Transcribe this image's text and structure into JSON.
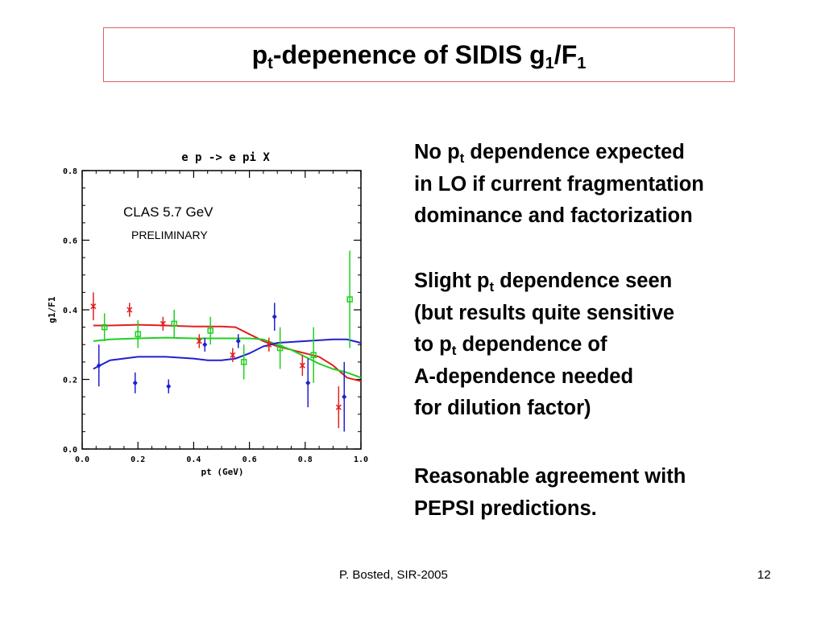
{
  "slide": {
    "title": {
      "main": "p",
      "sub1": "t",
      "mid": "-depenence of SIDIS g",
      "sub2": "1",
      "end": "/F",
      "sub3": "1"
    },
    "block1": {
      "l1": {
        "a": "No p",
        "sub": "t",
        "b": " dependence expected"
      },
      "l2": "in LO if current fragmentation",
      "l3": "dominance and factorization"
    },
    "block2": {
      "l1": {
        "a": "Slight p",
        "sub": "t",
        "b": " dependence seen"
      },
      "l2": "(but results quite sensitive",
      "l3": {
        "a": "to p",
        "sub": "t",
        "b": " dependence of"
      },
      "l4": "A-dependence  needed",
      "l5": "for dilution factor)"
    },
    "block3": {
      "l1": "Reasonable agreement with",
      "l2": "PEPSI predictions."
    },
    "footer_left": "P. Bosted,  SIR-2005",
    "footer_right": "12"
  },
  "chart_data": {
    "type": "scatter",
    "title": "e p -> e pi X",
    "xlabel": "pt (GeV)",
    "ylabel": "g1/F1",
    "xlim": [
      0.0,
      1.0
    ],
    "ylim": [
      0.0,
      0.8
    ],
    "xticks": [
      "0.0",
      "0.2",
      "0.4",
      "0.6",
      "0.8",
      "1.0"
    ],
    "yticks": [
      "0.0",
      "0.2",
      "0.4",
      "0.6",
      "0.8"
    ],
    "annotations": [
      "CLAS 5.7 GeV",
      "PRELIMINARY"
    ],
    "colors": {
      "red": "#e02020",
      "green": "#20d020",
      "blue": "#2020d0"
    },
    "series": [
      {
        "color": "red",
        "marker": "star",
        "points": [
          {
            "x": 0.04,
            "y": 0.41,
            "err": 0.04
          },
          {
            "x": 0.17,
            "y": 0.4,
            "err": 0.02
          },
          {
            "x": 0.29,
            "y": 0.36,
            "err": 0.02
          },
          {
            "x": 0.42,
            "y": 0.31,
            "err": 0.02
          },
          {
            "x": 0.54,
            "y": 0.27,
            "err": 0.02
          },
          {
            "x": 0.67,
            "y": 0.3,
            "err": 0.02
          },
          {
            "x": 0.79,
            "y": 0.24,
            "err": 0.03
          },
          {
            "x": 0.92,
            "y": 0.12,
            "err": 0.06
          }
        ],
        "curve": [
          [
            0.04,
            0.355
          ],
          [
            0.1,
            0.355
          ],
          [
            0.2,
            0.357
          ],
          [
            0.3,
            0.355
          ],
          [
            0.4,
            0.352
          ],
          [
            0.5,
            0.352
          ],
          [
            0.55,
            0.35
          ],
          [
            0.6,
            0.33
          ],
          [
            0.65,
            0.31
          ],
          [
            0.7,
            0.295
          ],
          [
            0.75,
            0.285
          ],
          [
            0.8,
            0.275
          ],
          [
            0.85,
            0.265
          ],
          [
            0.9,
            0.24
          ],
          [
            0.95,
            0.205
          ],
          [
            1.0,
            0.195
          ]
        ]
      },
      {
        "color": "green",
        "marker": "square",
        "points": [
          {
            "x": 0.08,
            "y": 0.35,
            "err": 0.04
          },
          {
            "x": 0.2,
            "y": 0.33,
            "err": 0.04
          },
          {
            "x": 0.33,
            "y": 0.36,
            "err": 0.04
          },
          {
            "x": 0.46,
            "y": 0.34,
            "err": 0.04
          },
          {
            "x": 0.58,
            "y": 0.25,
            "err": 0.05
          },
          {
            "x": 0.71,
            "y": 0.29,
            "err": 0.06
          },
          {
            "x": 0.83,
            "y": 0.27,
            "err": 0.08
          },
          {
            "x": 0.96,
            "y": 0.43,
            "err": 0.14
          }
        ],
        "curve": [
          [
            0.04,
            0.31
          ],
          [
            0.1,
            0.315
          ],
          [
            0.2,
            0.318
          ],
          [
            0.3,
            0.32
          ],
          [
            0.4,
            0.318
          ],
          [
            0.5,
            0.318
          ],
          [
            0.6,
            0.318
          ],
          [
            0.65,
            0.315
          ],
          [
            0.7,
            0.3
          ],
          [
            0.75,
            0.285
          ],
          [
            0.8,
            0.265
          ],
          [
            0.85,
            0.245
          ],
          [
            0.9,
            0.23
          ],
          [
            0.95,
            0.22
          ],
          [
            1.0,
            0.205
          ]
        ]
      },
      {
        "color": "blue",
        "marker": "diamond",
        "points": [
          {
            "x": 0.06,
            "y": 0.24,
            "err": 0.06
          },
          {
            "x": 0.19,
            "y": 0.19,
            "err": 0.03
          },
          {
            "x": 0.31,
            "y": 0.18,
            "err": 0.02
          },
          {
            "x": 0.44,
            "y": 0.3,
            "err": 0.02
          },
          {
            "x": 0.56,
            "y": 0.31,
            "err": 0.02
          },
          {
            "x": 0.69,
            "y": 0.38,
            "err": 0.04
          },
          {
            "x": 0.81,
            "y": 0.19,
            "err": 0.07
          },
          {
            "x": 0.94,
            "y": 0.15,
            "err": 0.1
          }
        ],
        "curve": [
          [
            0.04,
            0.23
          ],
          [
            0.1,
            0.255
          ],
          [
            0.2,
            0.265
          ],
          [
            0.3,
            0.265
          ],
          [
            0.4,
            0.26
          ],
          [
            0.45,
            0.255
          ],
          [
            0.5,
            0.255
          ],
          [
            0.55,
            0.26
          ],
          [
            0.6,
            0.275
          ],
          [
            0.65,
            0.295
          ],
          [
            0.7,
            0.305
          ],
          [
            0.8,
            0.31
          ],
          [
            0.9,
            0.315
          ],
          [
            0.95,
            0.315
          ],
          [
            1.0,
            0.305
          ]
        ]
      }
    ]
  }
}
